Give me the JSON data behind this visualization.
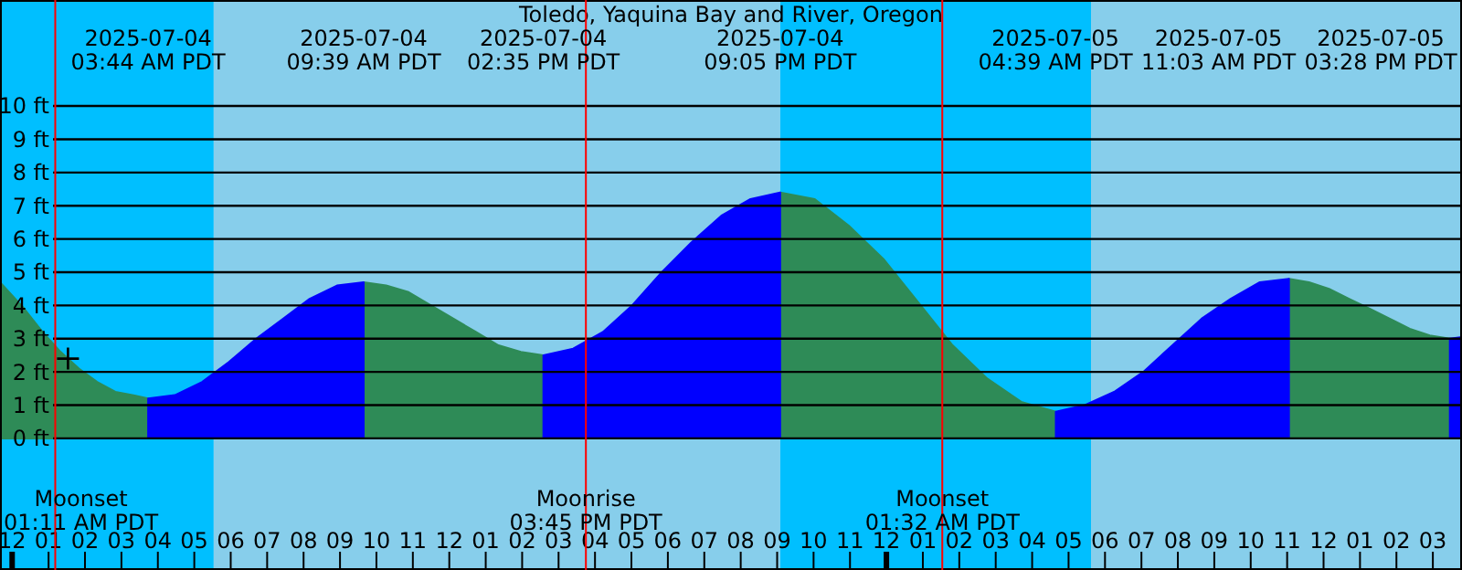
{
  "chart_data": {
    "type": "area",
    "title": "Toledo, Yaquina Bay and River, Oregon",
    "xlim": [
      "2025-07-03T23:40",
      "2025-07-05T15:48"
    ],
    "ylim": [
      -3.96,
      13.19
    ],
    "xticks": [
      {
        "value": "2025-07-04T00:00",
        "label": "12"
      },
      {
        "value": "2025-07-04T01:00",
        "label": "01"
      },
      {
        "value": "2025-07-04T02:00",
        "label": "02"
      },
      {
        "value": "2025-07-04T03:00",
        "label": "03"
      },
      {
        "value": "2025-07-04T04:00",
        "label": "04"
      },
      {
        "value": "2025-07-04T05:00",
        "label": "05"
      },
      {
        "value": "2025-07-04T06:00",
        "label": "06"
      },
      {
        "value": "2025-07-04T07:00",
        "label": "07"
      },
      {
        "value": "2025-07-04T08:00",
        "label": "08"
      },
      {
        "value": "2025-07-04T09:00",
        "label": "09"
      },
      {
        "value": "2025-07-04T10:00",
        "label": "10"
      },
      {
        "value": "2025-07-04T11:00",
        "label": "11"
      },
      {
        "value": "2025-07-04T12:00",
        "label": "12"
      },
      {
        "value": "2025-07-04T13:00",
        "label": "01"
      },
      {
        "value": "2025-07-04T14:00",
        "label": "02"
      },
      {
        "value": "2025-07-04T15:00",
        "label": "03"
      },
      {
        "value": "2025-07-04T16:00",
        "label": "04"
      },
      {
        "value": "2025-07-04T17:00",
        "label": "05"
      },
      {
        "value": "2025-07-04T18:00",
        "label": "06"
      },
      {
        "value": "2025-07-04T19:00",
        "label": "07"
      },
      {
        "value": "2025-07-04T20:00",
        "label": "08"
      },
      {
        "value": "2025-07-04T21:00",
        "label": "09"
      },
      {
        "value": "2025-07-04T22:00",
        "label": "10"
      },
      {
        "value": "2025-07-04T23:00",
        "label": "11"
      },
      {
        "value": "2025-07-05T00:00",
        "label": "12"
      },
      {
        "value": "2025-07-05T01:00",
        "label": "01"
      },
      {
        "value": "2025-07-05T02:00",
        "label": "02"
      },
      {
        "value": "2025-07-05T03:00",
        "label": "03"
      },
      {
        "value": "2025-07-05T04:00",
        "label": "04"
      },
      {
        "value": "2025-07-05T05:00",
        "label": "05"
      },
      {
        "value": "2025-07-05T06:00",
        "label": "06"
      },
      {
        "value": "2025-07-05T07:00",
        "label": "07"
      },
      {
        "value": "2025-07-05T08:00",
        "label": "08"
      },
      {
        "value": "2025-07-05T09:00",
        "label": "09"
      },
      {
        "value": "2025-07-05T10:00",
        "label": "10"
      },
      {
        "value": "2025-07-05T11:00",
        "label": "11"
      },
      {
        "value": "2025-07-05T12:00",
        "label": "12"
      },
      {
        "value": "2025-07-05T13:00",
        "label": "01"
      },
      {
        "value": "2025-07-05T14:00",
        "label": "02"
      },
      {
        "value": "2025-07-05T15:00",
        "label": "03"
      }
    ],
    "yticks": [
      {
        "value": 0,
        "label": "0 ft"
      },
      {
        "value": 1,
        "label": "1 ft"
      },
      {
        "value": 2,
        "label": "2 ft"
      },
      {
        "value": 3,
        "label": "3 ft"
      },
      {
        "value": 4,
        "label": "4 ft"
      },
      {
        "value": 5,
        "label": "5 ft"
      },
      {
        "value": 6,
        "label": "6 ft"
      },
      {
        "value": 7,
        "label": "7 ft"
      },
      {
        "value": 8,
        "label": "8 ft"
      },
      {
        "value": 9,
        "label": "9 ft"
      },
      {
        "value": 10,
        "label": "10 ft"
      }
    ],
    "grid": "y",
    "bands": [
      {
        "axis": "x",
        "from": "2025-07-03T23:40",
        "to": "2025-07-04T05:32",
        "color": "#00bfff"
      },
      {
        "axis": "x",
        "from": "2025-07-04T05:32",
        "to": "2025-07-04T21:05",
        "color": "#87ceeb"
      },
      {
        "axis": "x",
        "from": "2025-07-04T21:05",
        "to": "2025-07-05T05:37",
        "color": "#00bfff"
      },
      {
        "axis": "x",
        "from": "2025-07-05T05:37",
        "to": "2025-07-05T15:48",
        "color": "#87ceeb"
      }
    ],
    "ref_lines": [
      {
        "axis": "x",
        "value": "2025-07-04T01:11",
        "label": "Moonset\n01:11 AM PDT",
        "color": "#ff0000"
      },
      {
        "axis": "x",
        "value": "2025-07-04T15:45",
        "label": "Moonrise\n03:45 PM PDT",
        "color": "#ff0000"
      },
      {
        "axis": "x",
        "value": "2025-07-05T01:32",
        "label": "Moonset\n01:32 AM PDT",
        "color": "#ff0000"
      }
    ],
    "x": [
      "2025-07-03T23:40",
      "2025-07-04T00:20",
      "2025-07-04T00:50",
      "2025-07-04T01:20",
      "2025-07-04T01:50",
      "2025-07-04T02:20",
      "2025-07-04T02:50",
      "2025-07-04T03:20",
      "2025-07-04T03:44",
      "2025-07-04T04:28",
      "2025-07-04T05:13",
      "2025-07-04T05:57",
      "2025-07-04T06:42",
      "2025-07-04T07:26",
      "2025-07-04T08:10",
      "2025-07-04T08:55",
      "2025-07-04T09:39",
      "2025-07-04T10:16",
      "2025-07-04T10:53",
      "2025-07-04T11:30",
      "2025-07-04T12:07",
      "2025-07-04T12:44",
      "2025-07-04T13:21",
      "2025-07-04T13:58",
      "2025-07-04T14:35",
      "2025-07-04T15:24",
      "2025-07-04T16:13",
      "2025-07-04T17:01",
      "2025-07-04T17:50",
      "2025-07-04T18:39",
      "2025-07-04T19:28",
      "2025-07-04T20:16",
      "2025-07-04T21:05",
      "2025-07-04T22:02",
      "2025-07-04T22:58",
      "2025-07-04T23:55",
      "2025-07-05T00:52",
      "2025-07-05T01:49",
      "2025-07-05T02:46",
      "2025-07-05T03:42",
      "2025-07-05T04:39",
      "2025-07-05T05:27",
      "2025-07-05T06:15",
      "2025-07-05T07:03",
      "2025-07-05T07:51",
      "2025-07-05T08:39",
      "2025-07-05T09:27",
      "2025-07-05T10:15",
      "2025-07-05T11:03",
      "2025-07-05T11:36",
      "2025-07-05T12:09",
      "2025-07-05T12:42",
      "2025-07-05T13:16",
      "2025-07-05T13:49",
      "2025-07-05T14:22",
      "2025-07-05T14:55",
      "2025-07-05T15:28",
      "2025-07-05T15:48"
    ],
    "series": [
      {
        "color": "#2e8b57",
        "values": [
          4.7,
          3.9,
          3.2,
          2.6,
          2.1,
          1.7,
          1.4,
          1.3,
          1.2,
          null,
          null,
          null,
          null,
          null,
          null,
          null,
          4.7,
          4.6,
          4.4,
          4.0,
          3.6,
          3.2,
          2.8,
          2.6,
          2.5,
          null,
          null,
          null,
          null,
          null,
          null,
          null,
          7.4,
          7.2,
          6.4,
          5.4,
          4.1,
          2.8,
          1.8,
          1.1,
          0.8,
          null,
          null,
          null,
          null,
          null,
          null,
          null,
          4.8,
          4.7,
          4.5,
          4.2,
          3.9,
          3.6,
          3.3,
          3.1,
          3.0,
          null
        ]
      },
      {
        "color": "#0000ff",
        "values": [
          null,
          null,
          null,
          null,
          null,
          null,
          null,
          null,
          1.2,
          1.3,
          1.7,
          2.3,
          3.0,
          3.6,
          4.2,
          4.6,
          4.7,
          null,
          null,
          null,
          null,
          null,
          null,
          null,
          2.5,
          2.7,
          3.2,
          4.0,
          5.0,
          5.9,
          6.7,
          7.2,
          7.4,
          null,
          null,
          null,
          null,
          null,
          null,
          null,
          0.8,
          1.0,
          1.4,
          2.0,
          2.8,
          3.6,
          4.2,
          4.7,
          4.8,
          null,
          null,
          null,
          null,
          null,
          null,
          null,
          3.0,
          3.05
        ]
      },
      {
        "type": "scatter",
        "marker": "cross",
        "color": "#000000",
        "x": [
          "2025-07-04T01:32"
        ],
        "values": [
          2.4
        ]
      }
    ],
    "annotations": [
      "2025-07-04\n03:44 AM PDT",
      "2025-07-04\n09:39 AM PDT",
      "2025-07-04\n02:35 PM PDT",
      "2025-07-04\n09:05 PM PDT",
      "2025-07-05\n04:39 AM PDT",
      "2025-07-05\n11:03 AM PDT",
      "2025-07-05\n03:28 PM PDT"
    ]
  }
}
